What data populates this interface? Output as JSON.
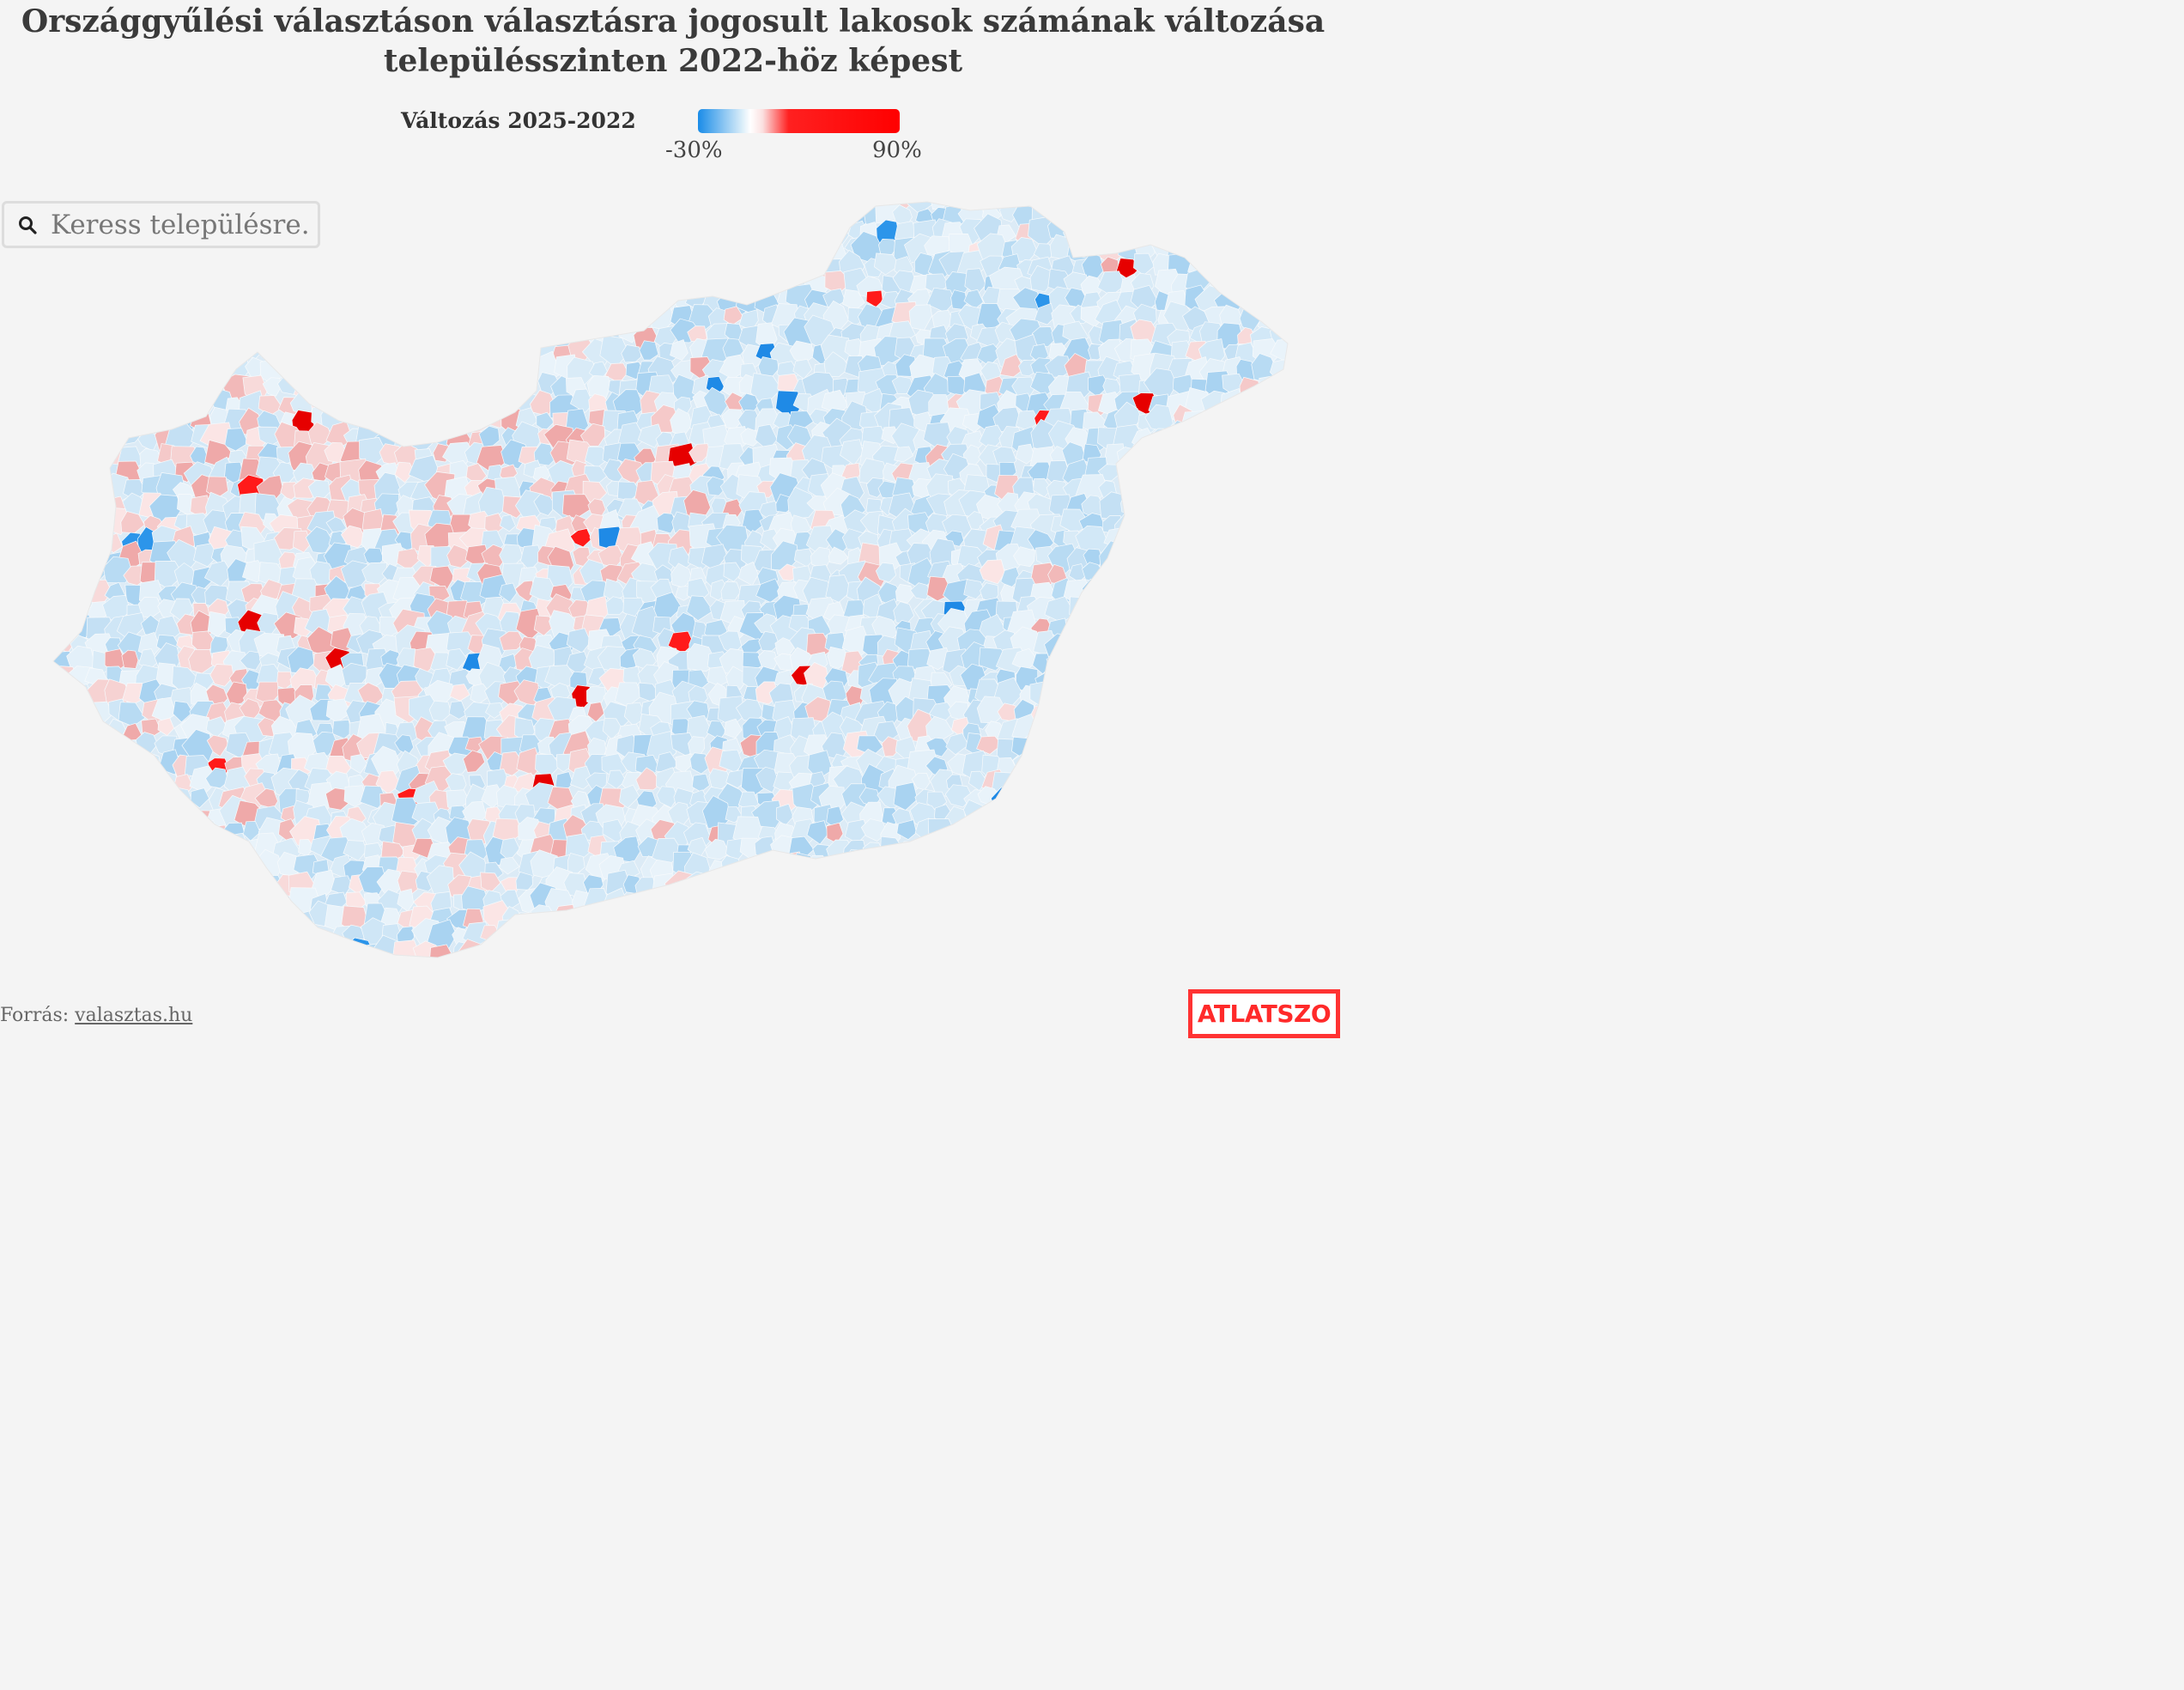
{
  "title": "Országgyűlési választáson választásra jogosult lakosok számának változása településszinten 2022-höz képest",
  "legend": {
    "title": "Változás 2025-2022",
    "min_label": "-30%",
    "max_label": "90%",
    "min_value": -30,
    "max_value": 90,
    "color_low": "#1a8ce8",
    "color_mid": "#ffffff",
    "color_high": "#ff0000"
  },
  "search": {
    "placeholder": "Keress településre.."
  },
  "map": {
    "region": "Hungary",
    "unit": "settlement",
    "background": "#f4f4f4"
  },
  "source": {
    "label": "Forrás:",
    "link_text": "valasztas.hu"
  },
  "logo": {
    "text": "ATLATSZO",
    "color": "#ff2a2a"
  }
}
